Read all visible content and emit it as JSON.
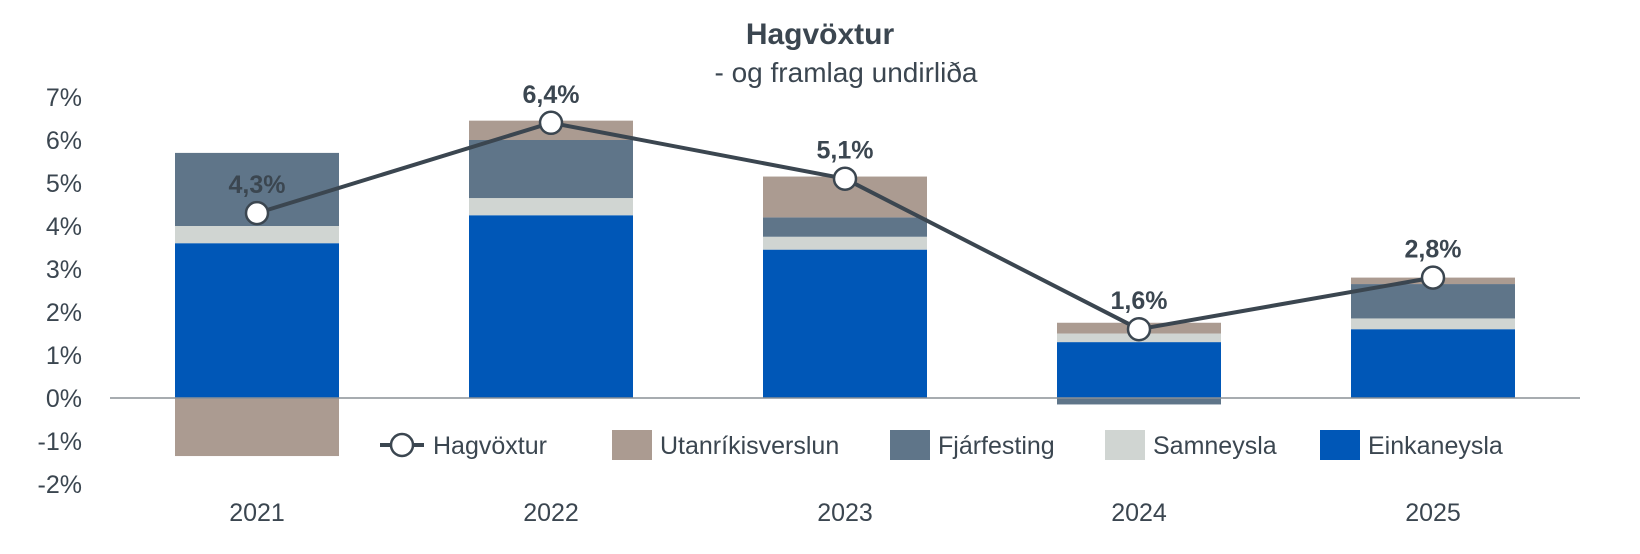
{
  "chart_data": {
    "type": "bar",
    "stacked": true,
    "title": "Hagvöxtur",
    "subtitle": "- og framlag undirliða",
    "categories": [
      "2021",
      "2022",
      "2023",
      "2024",
      "2025"
    ],
    "ylim": [
      -2,
      7
    ],
    "yticks": [
      "-2%",
      "-1%",
      "0%",
      "1%",
      "2%",
      "3%",
      "4%",
      "5%",
      "6%",
      "7%"
    ],
    "series": [
      {
        "name": "Einkaneysla",
        "type": "bar",
        "color": "#0057b7",
        "values": [
          3.6,
          4.25,
          3.45,
          1.3,
          1.6
        ]
      },
      {
        "name": "Samneysla",
        "type": "bar",
        "color": "#d0d5d2",
        "values": [
          0.4,
          0.4,
          0.3,
          0.2,
          0.25
        ]
      },
      {
        "name": "Fjárfesting",
        "type": "bar",
        "color": "#5f7589",
        "values": [
          1.7,
          1.35,
          0.45,
          -0.15,
          0.8
        ]
      },
      {
        "name": "Utanríkisverslun",
        "type": "bar",
        "color": "#ab9b91",
        "values": [
          -1.35,
          0.45,
          0.95,
          0.25,
          0.15
        ]
      },
      {
        "name": "Hagvöxtur",
        "type": "line",
        "color": "#3b4650",
        "values": [
          4.3,
          6.4,
          5.1,
          1.6,
          2.8
        ],
        "labels": [
          "4,3%",
          "6,4%",
          "5,1%",
          "1,6%",
          "2,8%"
        ]
      }
    ],
    "legend_order": [
      "Hagvöxtur",
      "Utanríkisverslun",
      "Fjárfesting",
      "Samneysla",
      "Einkaneysla"
    ],
    "legend_position": "bottom-right",
    "grid": false
  }
}
